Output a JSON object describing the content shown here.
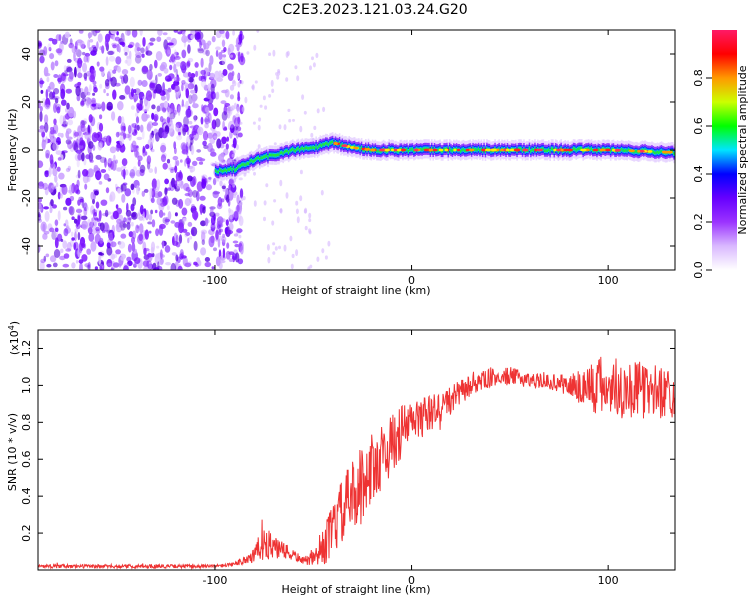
{
  "title": "C2E3.2023.121.03.24.G20",
  "chart_data": [
    {
      "type": "heatmap",
      "panel": "spectrogram",
      "xlabel": "Height of straight line (km)",
      "ylabel": "Frequency (Hz)",
      "xlim": [
        -190,
        134
      ],
      "ylim": [
        -50,
        50
      ],
      "xticks": [
        -100,
        0,
        100
      ],
      "xtick_labels": [
        "-100",
        "0",
        "100"
      ],
      "yticks": [
        -40,
        -20,
        0,
        20,
        40
      ],
      "ytick_labels": [
        "-40",
        "-20",
        "0",
        "20",
        "40"
      ],
      "grid": false,
      "signal_center_frequency_hz": [
        [
          -100,
          -9
        ],
        [
          -90,
          -8
        ],
        [
          -80,
          -4
        ],
        [
          -70,
          -2
        ],
        [
          -60,
          0
        ],
        [
          -50,
          1
        ],
        [
          -40,
          3
        ],
        [
          -30,
          1
        ],
        [
          -20,
          0
        ],
        [
          0,
          0
        ],
        [
          50,
          0
        ],
        [
          100,
          0
        ],
        [
          134,
          -1
        ]
      ],
      "noise_extends_to_height_km": -92,
      "colorbar": {
        "label": "Normalized spectral amplitude",
        "range": [
          0,
          1
        ],
        "ticks": [
          0.0,
          0.2,
          0.4,
          0.6,
          0.8
        ],
        "tick_labels": [
          "0.0",
          "0.2",
          "0.4",
          "0.6",
          "0.8"
        ],
        "colormap": [
          "#ffffff",
          "#d9b8ff",
          "#9b33ff",
          "#6600ff",
          "#0000ff",
          "#00e5ff",
          "#00ff00",
          "#ccff00",
          "#ff9900",
          "#ff0000",
          "#ff1a66"
        ]
      }
    },
    {
      "type": "line",
      "panel": "snr",
      "xlabel": "Height of straight line (km)",
      "ylabel": "SNR (10 * v/v)",
      "y_multiplier": "(x10",
      "y_multiplier_exponent": "4",
      "y_multiplier_close": ")",
      "xlim": [
        -190,
        134
      ],
      "ylim": [
        0,
        1.3
      ],
      "xticks": [
        -100,
        0,
        100
      ],
      "xtick_labels": [
        "-100",
        "0",
        "100"
      ],
      "yticks": [
        0.2,
        0.4,
        0.6,
        0.8,
        1.0,
        1.2
      ],
      "ytick_labels": [
        "0.2",
        "0.4",
        "0.6",
        "0.8",
        "1.0",
        "1.2"
      ],
      "grid": false,
      "color": "#ee3333",
      "series": [
        {
          "x": [
            -190,
            -160,
            -130,
            -100,
            -90,
            -80,
            -75,
            -70,
            -65,
            -60,
            -55,
            -50,
            -45,
            -40,
            -35,
            -30,
            -25,
            -20,
            -15,
            -10,
            -5,
            0,
            10,
            20,
            30,
            40,
            50,
            60,
            70,
            80,
            90,
            100,
            110,
            120,
            134
          ],
          "y": [
            0.02,
            0.02,
            0.02,
            0.02,
            0.03,
            0.08,
            0.15,
            0.12,
            0.1,
            0.08,
            0.05,
            0.06,
            0.12,
            0.22,
            0.32,
            0.4,
            0.48,
            0.55,
            0.62,
            0.68,
            0.75,
            0.8,
            0.85,
            0.92,
            1.0,
            1.04,
            1.05,
            1.03,
            1.02,
            1.0,
            0.99,
            1.0,
            0.98,
            0.97,
            0.96
          ],
          "noise_amplitude": [
            0.01,
            0.01,
            0.01,
            0.01,
            0.01,
            0.05,
            0.1,
            0.06,
            0.05,
            0.03,
            0.02,
            0.04,
            0.1,
            0.15,
            0.18,
            0.2,
            0.2,
            0.2,
            0.18,
            0.16,
            0.15,
            0.12,
            0.1,
            0.08,
            0.06,
            0.05,
            0.05,
            0.04,
            0.04,
            0.06,
            0.15,
            0.18,
            0.16,
            0.15,
            0.14
          ]
        }
      ]
    }
  ]
}
